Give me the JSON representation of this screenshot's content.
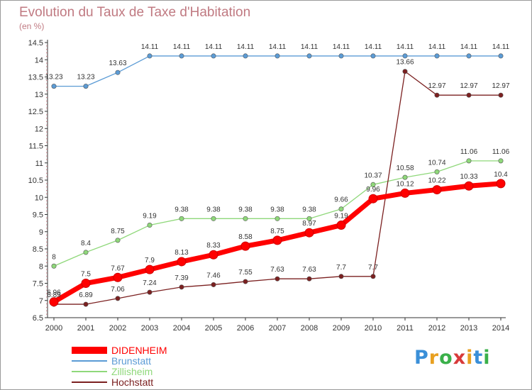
{
  "title": "Evolution du Taux de Taxe d'Habitation",
  "subtitle": "(en %)",
  "logo": {
    "text": "Proxiti",
    "letters": [
      "P",
      "r",
      "o",
      "x",
      "i",
      "t",
      "i"
    ],
    "colors": [
      "#3a8fd8",
      "#e8a020",
      "#3ab04a",
      "#d83a3a",
      "#e8a020",
      "#3a8fd8",
      "#3ab04a"
    ]
  },
  "chart_data": {
    "type": "line",
    "x": [
      2000,
      2001,
      2002,
      2003,
      2004,
      2005,
      2006,
      2007,
      2008,
      2009,
      2010,
      2011,
      2012,
      2013,
      2014
    ],
    "ylim": [
      6.5,
      14.5
    ],
    "yticks": [
      "6.5",
      "7",
      "7.5",
      "8",
      "8.5",
      "9",
      "9.5",
      "10",
      "10.5",
      "11",
      "11.5",
      "12",
      "12.5",
      "13",
      "13.5",
      "14",
      "14.5"
    ],
    "grid": false,
    "legend_position": "bottom-left",
    "series": [
      {
        "name": "DIDENHEIM",
        "color": "#ff0000",
        "values": [
          6.96,
          7.5,
          7.67,
          7.9,
          8.13,
          8.33,
          8.58,
          8.75,
          8.97,
          9.19,
          9.96,
          10.12,
          10.22,
          10.33,
          10.4
        ],
        "labels": [
          "6.96",
          "7.5",
          "7.67",
          "7.9",
          "8.13",
          "8.33",
          "8.58",
          "8.75",
          "8.97",
          "9.19",
          "9.96",
          "10.12",
          "10.22",
          "10.33",
          "10.4"
        ]
      },
      {
        "name": "Brunstatt",
        "color": "#5b9bd5",
        "values": [
          13.23,
          13.23,
          13.63,
          14.11,
          14.11,
          14.11,
          14.11,
          14.11,
          14.11,
          14.11,
          14.11,
          14.11,
          14.11,
          14.11,
          14.11
        ],
        "labels": [
          "13.23",
          "13.23",
          "13.63",
          "14.11",
          "14.11",
          "14.11",
          "14.11",
          "14.11",
          "14.11",
          "14.11",
          "14.11",
          "14.11",
          "14.11",
          "14.11",
          "14.11"
        ]
      },
      {
        "name": "Zillisheim",
        "color": "#8fd87a",
        "values": [
          8,
          8.4,
          8.75,
          9.19,
          9.38,
          9.38,
          9.38,
          9.38,
          9.38,
          9.66,
          10.37,
          10.58,
          10.74,
          11.06,
          11.06
        ],
        "labels": [
          "8",
          "8.4",
          "8.75",
          "9.19",
          "9.38",
          "9.38",
          "9.38",
          "9.38",
          "9.38",
          "9.66",
          "10.37",
          "10.58",
          "10.74",
          "11.06",
          "11.06"
        ]
      },
      {
        "name": "Hochstatt",
        "color": "#7b2020",
        "values": [
          6.89,
          6.89,
          7.06,
          7.24,
          7.39,
          7.46,
          7.55,
          7.63,
          7.63,
          7.7,
          7.7,
          13.66,
          12.97,
          12.97,
          12.97
        ],
        "labels": [
          "6.89",
          "6.89",
          "7.06",
          "7.24",
          "7.39",
          "7.46",
          "7.55",
          "7.63",
          "7.63",
          "7.7",
          "7.7",
          "13.66",
          "12.97",
          "12.97",
          "12.97"
        ]
      }
    ]
  }
}
